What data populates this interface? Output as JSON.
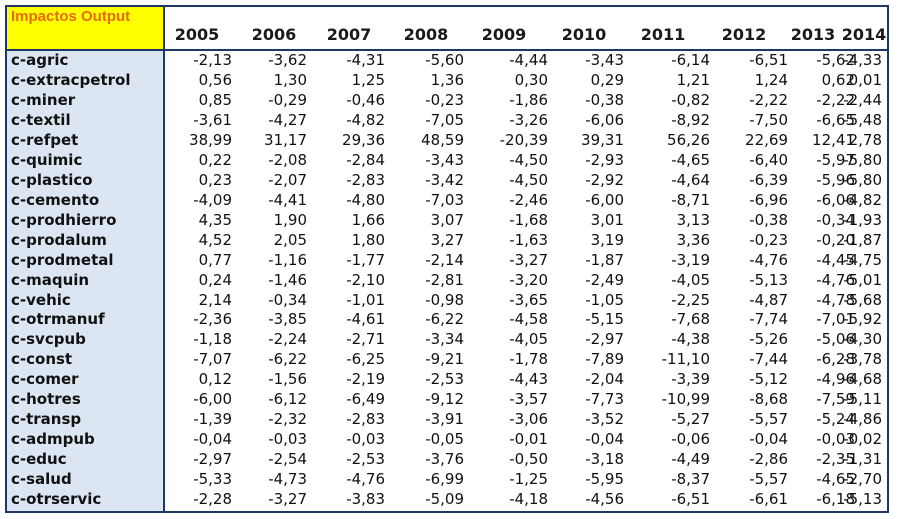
{
  "header_label": "Impactos Output",
  "years": [
    "2005",
    "2006",
    "2007",
    "2008",
    "2009",
    "2010",
    "2011",
    "2012",
    "2013",
    "2014"
  ],
  "rows": [
    {
      "label": "c-agric",
      "values": [
        "-2,13",
        "-3,62",
        "-4,31",
        "-5,60",
        "-4,44",
        "-3,43",
        "-6,14",
        "-6,51",
        "-5,62",
        "-4,33"
      ]
    },
    {
      "label": "c-extracpetrol",
      "values": [
        "0,56",
        "1,30",
        "1,25",
        "1,36",
        "0,30",
        "0,29",
        "1,21",
        "1,24",
        "0,62",
        "0,01"
      ]
    },
    {
      "label": "c-miner",
      "values": [
        "0,85",
        "-0,29",
        "-0,46",
        "-0,23",
        "-1,86",
        "-0,38",
        "-0,82",
        "-2,22",
        "-2,22",
        "-2,44"
      ]
    },
    {
      "label": "c-textil",
      "values": [
        "-3,61",
        "-4,27",
        "-4,82",
        "-7,05",
        "-3,26",
        "-6,06",
        "-8,92",
        "-7,50",
        "-6,65",
        "-5,48"
      ]
    },
    {
      "label": "c-refpet",
      "values": [
        "38,99",
        "31,17",
        "29,36",
        "48,59",
        "-20,39",
        "39,31",
        "56,26",
        "22,69",
        "12,41",
        "2,78"
      ]
    },
    {
      "label": "c-quimic",
      "values": [
        "0,22",
        "-2,08",
        "-2,84",
        "-3,43",
        "-4,50",
        "-2,93",
        "-4,65",
        "-6,40",
        "-5,97",
        "-5,80"
      ]
    },
    {
      "label": "c-plastico",
      "values": [
        "0,23",
        "-2,07",
        "-2,83",
        "-3,42",
        "-4,50",
        "-2,92",
        "-4,64",
        "-6,39",
        "-5,96",
        "-5,80"
      ]
    },
    {
      "label": "c-cemento",
      "values": [
        "-4,09",
        "-4,41",
        "-4,80",
        "-7,03",
        "-2,46",
        "-6,00",
        "-8,71",
        "-6,96",
        "-6,06",
        "-4,82"
      ]
    },
    {
      "label": "c-prodhierro",
      "values": [
        "4,35",
        "1,90",
        "1,66",
        "3,07",
        "-1,68",
        "3,01",
        "3,13",
        "-0,38",
        "-0,34",
        "-1,93"
      ]
    },
    {
      "label": "c-prodalum",
      "values": [
        "4,52",
        "2,05",
        "1,80",
        "3,27",
        "-1,63",
        "3,19",
        "3,36",
        "-0,23",
        "-0,20",
        "-1,87"
      ]
    },
    {
      "label": "c-prodmetal",
      "values": [
        "0,77",
        "-1,16",
        "-1,77",
        "-2,14",
        "-3,27",
        "-1,87",
        "-3,19",
        "-4,76",
        "-4,45",
        "-4,75"
      ]
    },
    {
      "label": "c-maquin",
      "values": [
        "0,24",
        "-1,46",
        "-2,10",
        "-2,81",
        "-3,20",
        "-2,49",
        "-4,05",
        "-5,13",
        "-4,76",
        "-5,01"
      ]
    },
    {
      "label": "c-vehic",
      "values": [
        "2,14",
        "-0,34",
        "-1,01",
        "-0,98",
        "-3,65",
        "-1,05",
        "-2,25",
        "-4,87",
        "-4,78",
        "-5,68"
      ]
    },
    {
      "label": "c-otrmanuf",
      "values": [
        "-2,36",
        "-3,85",
        "-4,61",
        "-6,22",
        "-4,58",
        "-5,15",
        "-7,68",
        "-7,74",
        "-7,01",
        "-5,92"
      ]
    },
    {
      "label": "c-svcpub",
      "values": [
        "-1,18",
        "-2,24",
        "-2,71",
        "-3,34",
        "-4,05",
        "-2,97",
        "-4,38",
        "-5,26",
        "-5,06",
        "-4,30"
      ]
    },
    {
      "label": "c-const",
      "values": [
        "-7,07",
        "-6,22",
        "-6,25",
        "-9,21",
        "-1,78",
        "-7,89",
        "-11,10",
        "-7,44",
        "-6,28",
        "-3,78"
      ]
    },
    {
      "label": "c-comer",
      "values": [
        "0,12",
        "-1,56",
        "-2,19",
        "-2,53",
        "-4,43",
        "-2,04",
        "-3,39",
        "-5,12",
        "-4,96",
        "-4,68"
      ]
    },
    {
      "label": "c-hotres",
      "values": [
        "-6,00",
        "-6,12",
        "-6,49",
        "-9,12",
        "-3,57",
        "-7,73",
        "-10,99",
        "-8,68",
        "-7,59",
        "-5,11"
      ]
    },
    {
      "label": "c-transp",
      "values": [
        "-1,39",
        "-2,32",
        "-2,83",
        "-3,91",
        "-3,06",
        "-3,52",
        "-5,27",
        "-5,57",
        "-5,24",
        "-4,86"
      ]
    },
    {
      "label": "c-admpub",
      "values": [
        "-0,04",
        "-0,03",
        "-0,03",
        "-0,05",
        "-0,01",
        "-0,04",
        "-0,06",
        "-0,04",
        "-0,03",
        "-0,02"
      ]
    },
    {
      "label": "c-educ",
      "values": [
        "-2,97",
        "-2,54",
        "-2,53",
        "-3,76",
        "-0,50",
        "-3,18",
        "-4,49",
        "-2,86",
        "-2,35",
        "-1,31"
      ]
    },
    {
      "label": "c-salud",
      "values": [
        "-5,33",
        "-4,73",
        "-4,76",
        "-6,99",
        "-1,25",
        "-5,95",
        "-8,37",
        "-5,57",
        "-4,65",
        "-2,70"
      ]
    },
    {
      "label": "c-otrservic",
      "values": [
        "-2,28",
        "-3,27",
        "-3,83",
        "-5,09",
        "-4,18",
        "-4,56",
        "-6,51",
        "-6,61",
        "-6,18",
        "-5,13"
      ]
    }
  ]
}
